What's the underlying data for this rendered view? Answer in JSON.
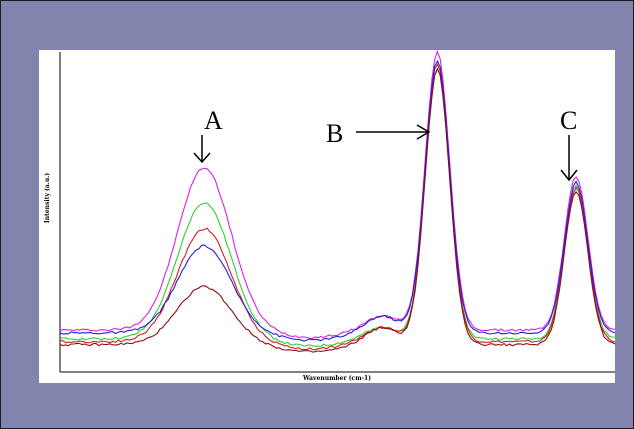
{
  "chart_data": {
    "type": "line",
    "title": "",
    "xlabel": "Wavenumber (cm-1)",
    "ylabel": "Intensity (a.u.)",
    "grid": false,
    "legend": "none",
    "xlim": [
      0,
      100
    ],
    "ylim": [
      0,
      100
    ],
    "annotations": [
      {
        "label": "A",
        "arrow": "down",
        "target_x": 26
      },
      {
        "label": "B",
        "arrow": "right",
        "target_x": 68
      },
      {
        "label": "C",
        "arrow": "down",
        "target_x": 93
      }
    ],
    "series": [
      {
        "color": "#e020e0",
        "base": 11,
        "amps": [
          56,
          5,
          96,
          53
        ]
      },
      {
        "color": "#30d030",
        "base": 8,
        "amps": [
          47,
          4,
          93,
          53
        ]
      },
      {
        "color": "#d02020",
        "base": 7,
        "amps": [
          39,
          5,
          96,
          53
        ]
      },
      {
        "color": "#2020e0",
        "base": 10,
        "amps": [
          30,
          6,
          94,
          52
        ]
      },
      {
        "color": "#8b1010",
        "base": 6,
        "amps": [
          20,
          6,
          95,
          53
        ]
      }
    ],
    "peak_centers": [
      26,
      58,
      68,
      93
    ],
    "peak_widths": [
      4.8,
      3.0,
      2.2,
      2.1
    ]
  }
}
